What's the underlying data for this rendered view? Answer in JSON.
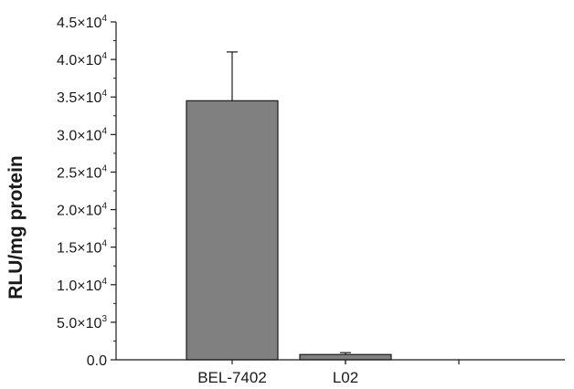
{
  "chart_data": {
    "type": "bar",
    "categories": [
      "BEL-7402",
      "L02"
    ],
    "values": [
      34500,
      700
    ],
    "errors": [
      6500,
      250
    ],
    "ylabel": "RLU/mg protein",
    "xlabel": "",
    "ylim": [
      0,
      45000
    ],
    "yticks": [
      {
        "value": 0,
        "mant": "0.0",
        "exp": ""
      },
      {
        "value": 5000,
        "mant": "5.0×10",
        "exp": "3"
      },
      {
        "value": 10000,
        "mant": "1.0×10",
        "exp": "4"
      },
      {
        "value": 15000,
        "mant": "1.5×10",
        "exp": "4"
      },
      {
        "value": 20000,
        "mant": "2.0×10",
        "exp": "4"
      },
      {
        "value": 25000,
        "mant": "2.5×10",
        "exp": "4"
      },
      {
        "value": 30000,
        "mant": "3.0×10",
        "exp": "4"
      },
      {
        "value": 35000,
        "mant": "3.5×10",
        "exp": "4"
      },
      {
        "value": 40000,
        "mant": "4.0×10",
        "exp": "4"
      },
      {
        "value": 45000,
        "mant": "4.5×10",
        "exp": "4"
      }
    ],
    "grid": false,
    "bar_color": "#808080",
    "edge_color": "#1a1a1a"
  }
}
